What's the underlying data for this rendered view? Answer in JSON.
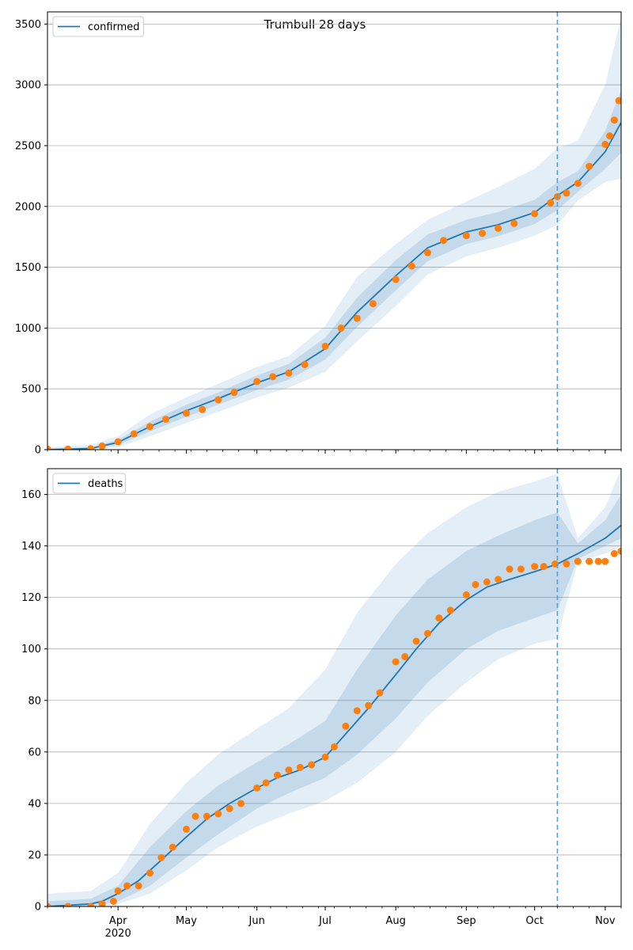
{
  "figure": {
    "title": "Trumbull 28 days"
  },
  "chart_data": [
    {
      "type": "line",
      "title": "Trumbull 28 days",
      "xlabel": "",
      "ylabel": "",
      "xlim": [
        "2020-03-01",
        "2020-11-08"
      ],
      "ylim": [
        0,
        3600
      ],
      "yticks": [
        0,
        500,
        1000,
        1500,
        2000,
        2500,
        3000,
        3500
      ],
      "xticks": [
        {
          "date": "2020-04-01",
          "label": "Apr",
          "sublabel": ""
        },
        {
          "date": "2020-05-01",
          "label": "May",
          "sublabel": ""
        },
        {
          "date": "2020-06-01",
          "label": "Jun",
          "sublabel": ""
        },
        {
          "date": "2020-07-01",
          "label": "Jul",
          "sublabel": ""
        },
        {
          "date": "2020-08-01",
          "label": "Aug",
          "sublabel": ""
        },
        {
          "date": "2020-09-01",
          "label": "Sep",
          "sublabel": ""
        },
        {
          "date": "2020-10-01",
          "label": "Oct",
          "sublabel": ""
        },
        {
          "date": "2020-11-01",
          "label": "Nov",
          "sublabel": ""
        }
      ],
      "show_xtick_labels": false,
      "grid": "y",
      "legend": {
        "placement": "top-left",
        "entries": [
          "confirmed"
        ]
      },
      "forecast_start": "2020-10-11",
      "colors": {
        "model": "#1f77b4",
        "observed": "#ff7f0e",
        "band": "#1f77b4",
        "vline": "#5b9bd5"
      },
      "series": [
        {
          "name": "confirmed",
          "kind": "model-median",
          "x": [
            "2020-03-01",
            "2020-03-20",
            "2020-04-01",
            "2020-04-15",
            "2020-05-01",
            "2020-05-15",
            "2020-06-01",
            "2020-06-15",
            "2020-07-01",
            "2020-07-15",
            "2020-08-01",
            "2020-08-15",
            "2020-09-01",
            "2020-09-15",
            "2020-10-01",
            "2020-10-11",
            "2020-10-20",
            "2020-11-01",
            "2020-11-08"
          ],
          "y": [
            0,
            10,
            60,
            190,
            320,
            420,
            550,
            640,
            830,
            1130,
            1430,
            1660,
            1790,
            1850,
            1950,
            2090,
            2200,
            2450,
            2690
          ]
        },
        {
          "name": "observed",
          "kind": "points",
          "x": [
            "2020-03-01",
            "2020-03-10",
            "2020-03-20",
            "2020-03-25",
            "2020-04-01",
            "2020-04-08",
            "2020-04-15",
            "2020-04-22",
            "2020-05-01",
            "2020-05-08",
            "2020-05-15",
            "2020-05-22",
            "2020-06-01",
            "2020-06-08",
            "2020-06-15",
            "2020-06-22",
            "2020-07-01",
            "2020-07-08",
            "2020-07-15",
            "2020-07-22",
            "2020-08-01",
            "2020-08-08",
            "2020-08-15",
            "2020-08-22",
            "2020-09-01",
            "2020-09-08",
            "2020-09-15",
            "2020-09-22",
            "2020-10-01",
            "2020-10-08",
            "2020-10-11",
            "2020-10-15",
            "2020-10-20",
            "2020-10-25",
            "2020-11-01",
            "2020-11-03",
            "2020-11-05",
            "2020-11-07"
          ],
          "y": [
            5,
            5,
            8,
            30,
            65,
            130,
            190,
            250,
            300,
            330,
            410,
            470,
            560,
            600,
            630,
            700,
            850,
            1000,
            1080,
            1200,
            1400,
            1510,
            1620,
            1720,
            1760,
            1780,
            1820,
            1860,
            1940,
            2030,
            2080,
            2110,
            2190,
            2330,
            2510,
            2580,
            2710,
            2870
          ]
        }
      ],
      "bands": [
        {
          "kind": "outer",
          "x": [
            "2020-03-01",
            "2020-03-20",
            "2020-04-01",
            "2020-04-15",
            "2020-05-01",
            "2020-05-15",
            "2020-06-01",
            "2020-06-15",
            "2020-07-01",
            "2020-07-15",
            "2020-08-01",
            "2020-08-15",
            "2020-09-01",
            "2020-09-15",
            "2020-10-01",
            "2020-10-11",
            "2020-10-20",
            "2020-11-01",
            "2020-11-08"
          ],
          "lower": [
            0,
            0,
            20,
            110,
            220,
            310,
            430,
            510,
            640,
            890,
            1180,
            1440,
            1590,
            1660,
            1760,
            1850,
            2050,
            2200,
            2230
          ],
          "upper": [
            20,
            40,
            110,
            290,
            430,
            540,
            680,
            770,
            1020,
            1420,
            1690,
            1890,
            2040,
            2160,
            2310,
            2480,
            2540,
            3000,
            3560
          ]
        },
        {
          "kind": "inner",
          "x": [
            "2020-03-01",
            "2020-03-20",
            "2020-04-01",
            "2020-04-15",
            "2020-05-01",
            "2020-05-15",
            "2020-06-01",
            "2020-06-15",
            "2020-07-01",
            "2020-07-15",
            "2020-08-01",
            "2020-08-15",
            "2020-09-01",
            "2020-09-15",
            "2020-10-01",
            "2020-10-11",
            "2020-10-20",
            "2020-11-01",
            "2020-11-08"
          ],
          "lower": [
            0,
            2,
            40,
            150,
            270,
            370,
            490,
            575,
            740,
            1010,
            1310,
            1550,
            1690,
            1755,
            1855,
            1970,
            2120,
            2310,
            2440
          ],
          "upper": [
            10,
            20,
            80,
            230,
            370,
            470,
            610,
            705,
            920,
            1250,
            1560,
            1770,
            1890,
            1955,
            2055,
            2200,
            2290,
            2620,
            2960
          ]
        }
      ]
    },
    {
      "type": "line",
      "title": "",
      "xlabel": "",
      "ylabel": "",
      "xlim": [
        "2020-03-01",
        "2020-11-08"
      ],
      "ylim": [
        0,
        170
      ],
      "yticks": [
        0,
        20,
        40,
        60,
        80,
        100,
        120,
        140,
        160
      ],
      "xticks": [
        {
          "date": "2020-04-01",
          "label": "Apr",
          "sublabel": "2020"
        },
        {
          "date": "2020-05-01",
          "label": "May",
          "sublabel": ""
        },
        {
          "date": "2020-06-01",
          "label": "Jun",
          "sublabel": ""
        },
        {
          "date": "2020-07-01",
          "label": "Jul",
          "sublabel": ""
        },
        {
          "date": "2020-08-01",
          "label": "Aug",
          "sublabel": ""
        },
        {
          "date": "2020-09-01",
          "label": "Sep",
          "sublabel": ""
        },
        {
          "date": "2020-10-01",
          "label": "Oct",
          "sublabel": ""
        },
        {
          "date": "2020-11-01",
          "label": "Nov",
          "sublabel": ""
        }
      ],
      "show_xtick_labels": true,
      "grid": "y",
      "legend": {
        "placement": "top-left",
        "entries": [
          "deaths"
        ]
      },
      "forecast_start": "2020-10-11",
      "colors": {
        "model": "#1f77b4",
        "observed": "#ff7f0e",
        "band": "#1f77b4",
        "vline": "#5b9bd5"
      },
      "series": [
        {
          "name": "deaths",
          "kind": "model-median",
          "x": [
            "2020-03-01",
            "2020-03-20",
            "2020-03-25",
            "2020-04-01",
            "2020-04-10",
            "2020-04-20",
            "2020-05-01",
            "2020-05-10",
            "2020-05-20",
            "2020-06-01",
            "2020-06-10",
            "2020-06-20",
            "2020-07-01",
            "2020-07-10",
            "2020-07-20",
            "2020-08-01",
            "2020-08-10",
            "2020-08-20",
            "2020-09-01",
            "2020-09-10",
            "2020-09-20",
            "2020-10-01",
            "2020-10-11",
            "2020-10-20",
            "2020-11-01",
            "2020-11-08"
          ],
          "y": [
            0,
            1,
            2,
            5,
            10,
            18,
            27,
            34,
            40,
            46,
            50,
            53,
            58,
            67,
            77,
            90,
            100,
            110,
            119,
            124,
            127,
            130,
            133,
            137,
            143,
            148
          ]
        },
        {
          "name": "observed",
          "kind": "points",
          "x": [
            "2020-03-01",
            "2020-03-10",
            "2020-03-20",
            "2020-03-25",
            "2020-03-30",
            "2020-04-01",
            "2020-04-05",
            "2020-04-10",
            "2020-04-15",
            "2020-04-20",
            "2020-04-25",
            "2020-05-01",
            "2020-05-05",
            "2020-05-10",
            "2020-05-15",
            "2020-05-20",
            "2020-05-25",
            "2020-06-01",
            "2020-06-05",
            "2020-06-10",
            "2020-06-15",
            "2020-06-20",
            "2020-06-25",
            "2020-07-01",
            "2020-07-05",
            "2020-07-10",
            "2020-07-15",
            "2020-07-20",
            "2020-07-25",
            "2020-08-01",
            "2020-08-05",
            "2020-08-10",
            "2020-08-15",
            "2020-08-20",
            "2020-08-25",
            "2020-09-01",
            "2020-09-05",
            "2020-09-10",
            "2020-09-15",
            "2020-09-20",
            "2020-09-25",
            "2020-10-01",
            "2020-10-05",
            "2020-10-10",
            "2020-10-15",
            "2020-10-20",
            "2020-10-25",
            "2020-10-29",
            "2020-11-01",
            "2020-11-05",
            "2020-11-08"
          ],
          "y": [
            0,
            0,
            0,
            1,
            2,
            6,
            8,
            8,
            13,
            19,
            23,
            30,
            35,
            35,
            36,
            38,
            40,
            46,
            48,
            51,
            53,
            54,
            55,
            58,
            62,
            70,
            76,
            78,
            83,
            95,
            97,
            103,
            106,
            112,
            115,
            121,
            125,
            126,
            127,
            131,
            131,
            132,
            132,
            133,
            133,
            134,
            134,
            134,
            134,
            137,
            138
          ]
        }
      ],
      "bands": [
        {
          "kind": "outer",
          "x": [
            "2020-03-01",
            "2020-03-20",
            "2020-04-01",
            "2020-04-15",
            "2020-05-01",
            "2020-05-15",
            "2020-06-01",
            "2020-06-15",
            "2020-07-01",
            "2020-07-15",
            "2020-08-01",
            "2020-08-15",
            "2020-09-01",
            "2020-09-15",
            "2020-10-01",
            "2020-10-11",
            "2020-10-20",
            "2020-11-01",
            "2020-11-08"
          ],
          "lower": [
            0,
            0,
            1,
            5,
            14,
            23,
            31,
            36,
            41,
            48,
            60,
            74,
            87,
            96,
            102,
            104,
            134,
            137,
            140
          ],
          "upper": [
            5,
            6,
            13,
            32,
            48,
            59,
            69,
            77,
            92,
            114,
            133,
            145,
            155,
            161,
            165,
            168,
            143,
            155,
            170
          ]
        },
        {
          "kind": "inner",
          "x": [
            "2020-03-01",
            "2020-03-20",
            "2020-04-01",
            "2020-04-15",
            "2020-05-01",
            "2020-05-15",
            "2020-06-01",
            "2020-06-15",
            "2020-07-01",
            "2020-07-15",
            "2020-08-01",
            "2020-08-15",
            "2020-09-01",
            "2020-09-15",
            "2020-10-01",
            "2020-10-11",
            "2020-10-20",
            "2020-11-01",
            "2020-11-08"
          ],
          "lower": [
            0,
            0,
            2,
            8,
            19,
            28,
            38,
            44,
            50,
            59,
            73,
            87,
            100,
            107,
            112,
            115,
            135,
            140,
            143
          ],
          "upper": [
            2,
            3,
            8,
            23,
            37,
            47,
            56,
            63,
            72,
            92,
            113,
            127,
            138,
            144,
            150,
            153,
            141,
            150,
            160
          ]
        }
      ]
    }
  ]
}
